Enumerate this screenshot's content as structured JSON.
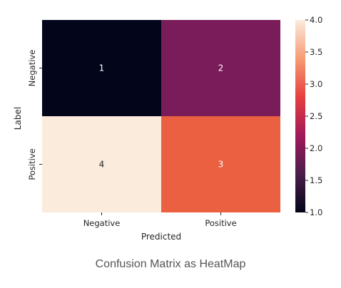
{
  "caption": "Confusion Matrix as HeatMap",
  "chart_data": {
    "type": "heatmap",
    "xlabel": "Predicted",
    "ylabel": "Label",
    "x_categories": [
      "Negative",
      "Positive"
    ],
    "y_categories": [
      "Negative",
      "Positive"
    ],
    "values": [
      [
        1,
        2
      ],
      [
        4,
        3
      ]
    ],
    "colorbar": {
      "min": 1.0,
      "max": 4.0,
      "ticks": [
        "1.0",
        "1.5",
        "2.0",
        "2.5",
        "3.0",
        "3.5",
        "4.0"
      ],
      "colormap": "rocket",
      "stops": [
        "#03051a",
        "#4c1d4b",
        "#a11a5b",
        "#e83f3f",
        "#f69c73",
        "#faebdd"
      ]
    },
    "cell_colors": [
      [
        "#03051a",
        "#7a1b5a"
      ],
      [
        "#faebdd",
        "#ea6040"
      ]
    ],
    "annotation_colors": [
      [
        "#ffffff",
        "#ffffff"
      ],
      [
        "#262626",
        "#ffffff"
      ]
    ]
  }
}
